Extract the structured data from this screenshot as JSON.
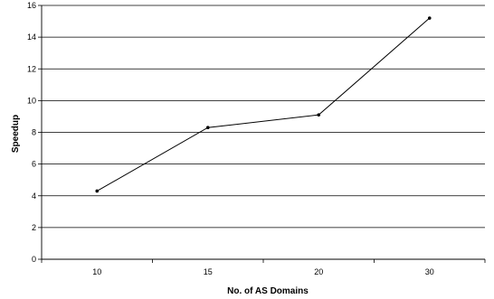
{
  "chart_data": {
    "type": "line",
    "categories": [
      "10",
      "15",
      "20",
      "30"
    ],
    "series": [
      {
        "values": [
          4.3,
          8.3,
          9.1,
          15.2
        ]
      }
    ],
    "xlabel": "No. of AS Domains",
    "ylabel": "Speedup",
    "ylim": [
      0,
      16
    ],
    "yticks": [
      0,
      2,
      4,
      6,
      8,
      10,
      12,
      14,
      16
    ],
    "grid": true,
    "legend": "none"
  },
  "colors": {
    "line": "#000000",
    "grid": "#000000",
    "background": "#ffffff"
  }
}
